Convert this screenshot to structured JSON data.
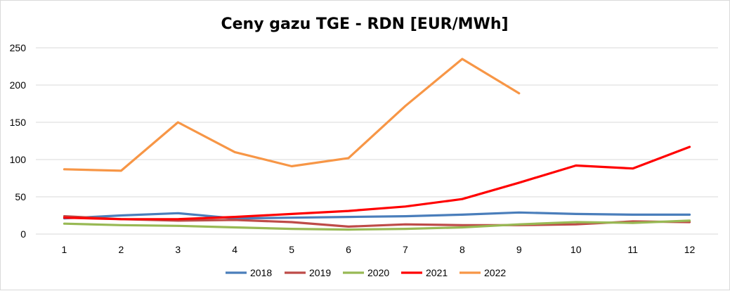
{
  "chart_data": {
    "type": "line",
    "title": "Ceny gazu TGE - RDN [EUR/MWh]",
    "xlabel": "",
    "ylabel": "",
    "categories": [
      "1",
      "2",
      "3",
      "4",
      "5",
      "6",
      "7",
      "8",
      "9",
      "10",
      "11",
      "12"
    ],
    "ylim": [
      0,
      250
    ],
    "yticks": [
      "0",
      "50",
      "100",
      "150",
      "200",
      "250"
    ],
    "grid": true,
    "legend_position": "bottom",
    "series": [
      {
        "name": "2018",
        "color": "#4a7ebb",
        "values": [
          21,
          25,
          28,
          21,
          22,
          23,
          24,
          26,
          29,
          27,
          26,
          26
        ]
      },
      {
        "name": "2019",
        "color": "#be4b48",
        "values": [
          24,
          20,
          18,
          19,
          16,
          10,
          13,
          12,
          12,
          13,
          17,
          16
        ]
      },
      {
        "name": "2020",
        "color": "#98b954",
        "values": [
          14,
          12,
          11,
          9,
          7,
          6,
          7,
          9,
          13,
          16,
          15,
          18
        ]
      },
      {
        "name": "2021",
        "color": "#ff0000",
        "values": [
          22,
          20,
          20,
          23,
          27,
          31,
          37,
          47,
          69,
          92,
          88,
          117
        ]
      },
      {
        "name": "2022",
        "color": "#f79646",
        "values": [
          87,
          85,
          150,
          110,
          91,
          102,
          172,
          235,
          189,
          null,
          null,
          null
        ]
      }
    ]
  }
}
